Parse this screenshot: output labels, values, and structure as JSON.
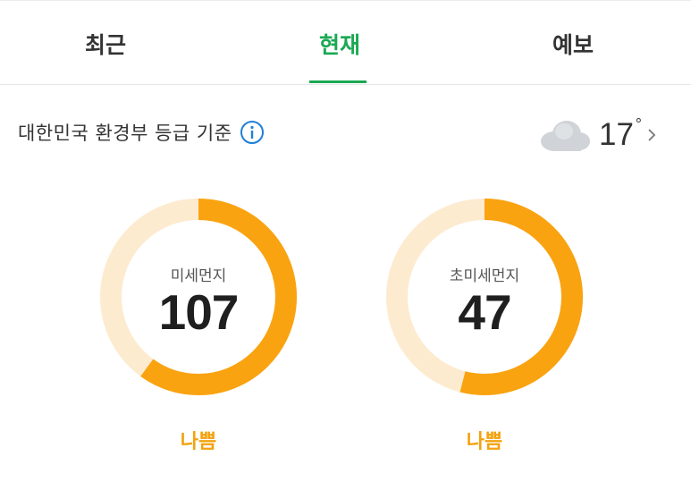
{
  "tabs": [
    {
      "label": "최근"
    },
    {
      "label": "현재",
      "active": true
    },
    {
      "label": "예보"
    }
  ],
  "standard": {
    "label": "대한민국 환경부 등급 기준",
    "info_icon": "info-icon"
  },
  "weather": {
    "icon": "cloud-icon",
    "temperature": "17",
    "unit": "°"
  },
  "gauges": [
    {
      "name": "미세먼지",
      "value": "107",
      "grade": "나쁨",
      "fill_fraction": 0.6
    },
    {
      "name": "초미세먼지",
      "value": "47",
      "grade": "나쁨",
      "fill_fraction": 0.54
    }
  ],
  "colors": {
    "accent_green": "#1ba854",
    "gauge_fill": "#f9a311",
    "gauge_track": "#fdebd0",
    "grade_text": "#f2a20d"
  }
}
